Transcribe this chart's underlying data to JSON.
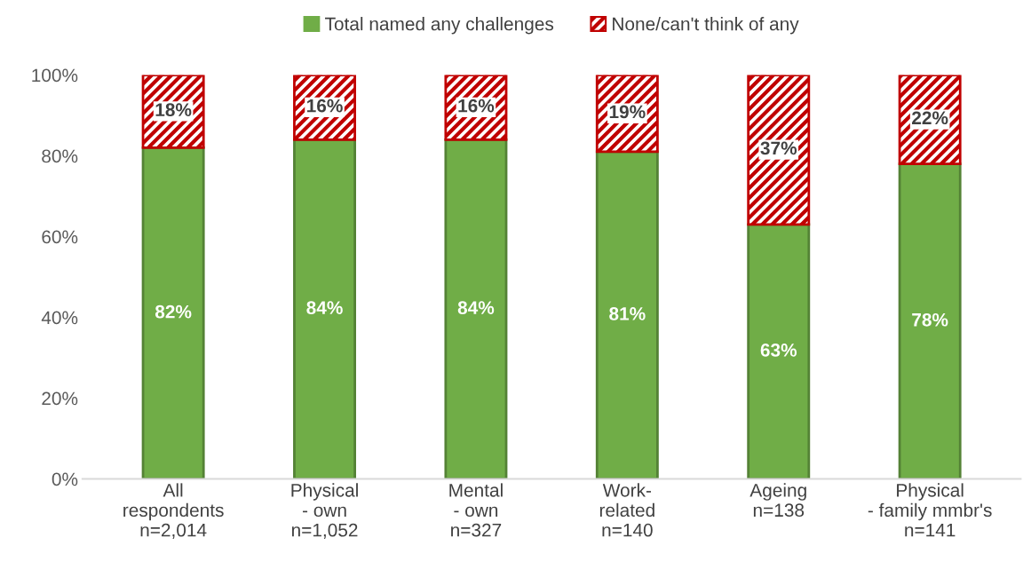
{
  "chart_data": {
    "type": "bar",
    "stacked": true,
    "categories": [
      "All\nrespondents\nn=2,014",
      "Physical\n- own\nn=1,052",
      "Mental\n- own\nn=327",
      "Work-\nrelated\nn=140",
      "Ageing\nn=138",
      "Physical\n- family mmbr's\nn=141"
    ],
    "series": [
      {
        "name": "Total named any challenges",
        "color": "#70ad47",
        "values": [
          82,
          84,
          84,
          81,
          63,
          78
        ],
        "value_labels": [
          "82%",
          "84%",
          "84%",
          "81%",
          "63%",
          "78%"
        ]
      },
      {
        "name": "None/can't think of any",
        "color": "#c00000",
        "values": [
          18,
          16,
          16,
          19,
          37,
          22
        ],
        "value_labels": [
          "18%",
          "16%",
          "16%",
          "19%",
          "37%",
          "22%"
        ]
      }
    ],
    "ylim": [
      0,
      100
    ],
    "yticks": [
      {
        "value": 0,
        "label": "0%"
      },
      {
        "value": 20,
        "label": "20%"
      },
      {
        "value": 40,
        "label": "40%"
      },
      {
        "value": 60,
        "label": "60%"
      },
      {
        "value": 80,
        "label": "80%"
      },
      {
        "value": 100,
        "label": "100%"
      }
    ],
    "legend": "top",
    "grid": false
  }
}
